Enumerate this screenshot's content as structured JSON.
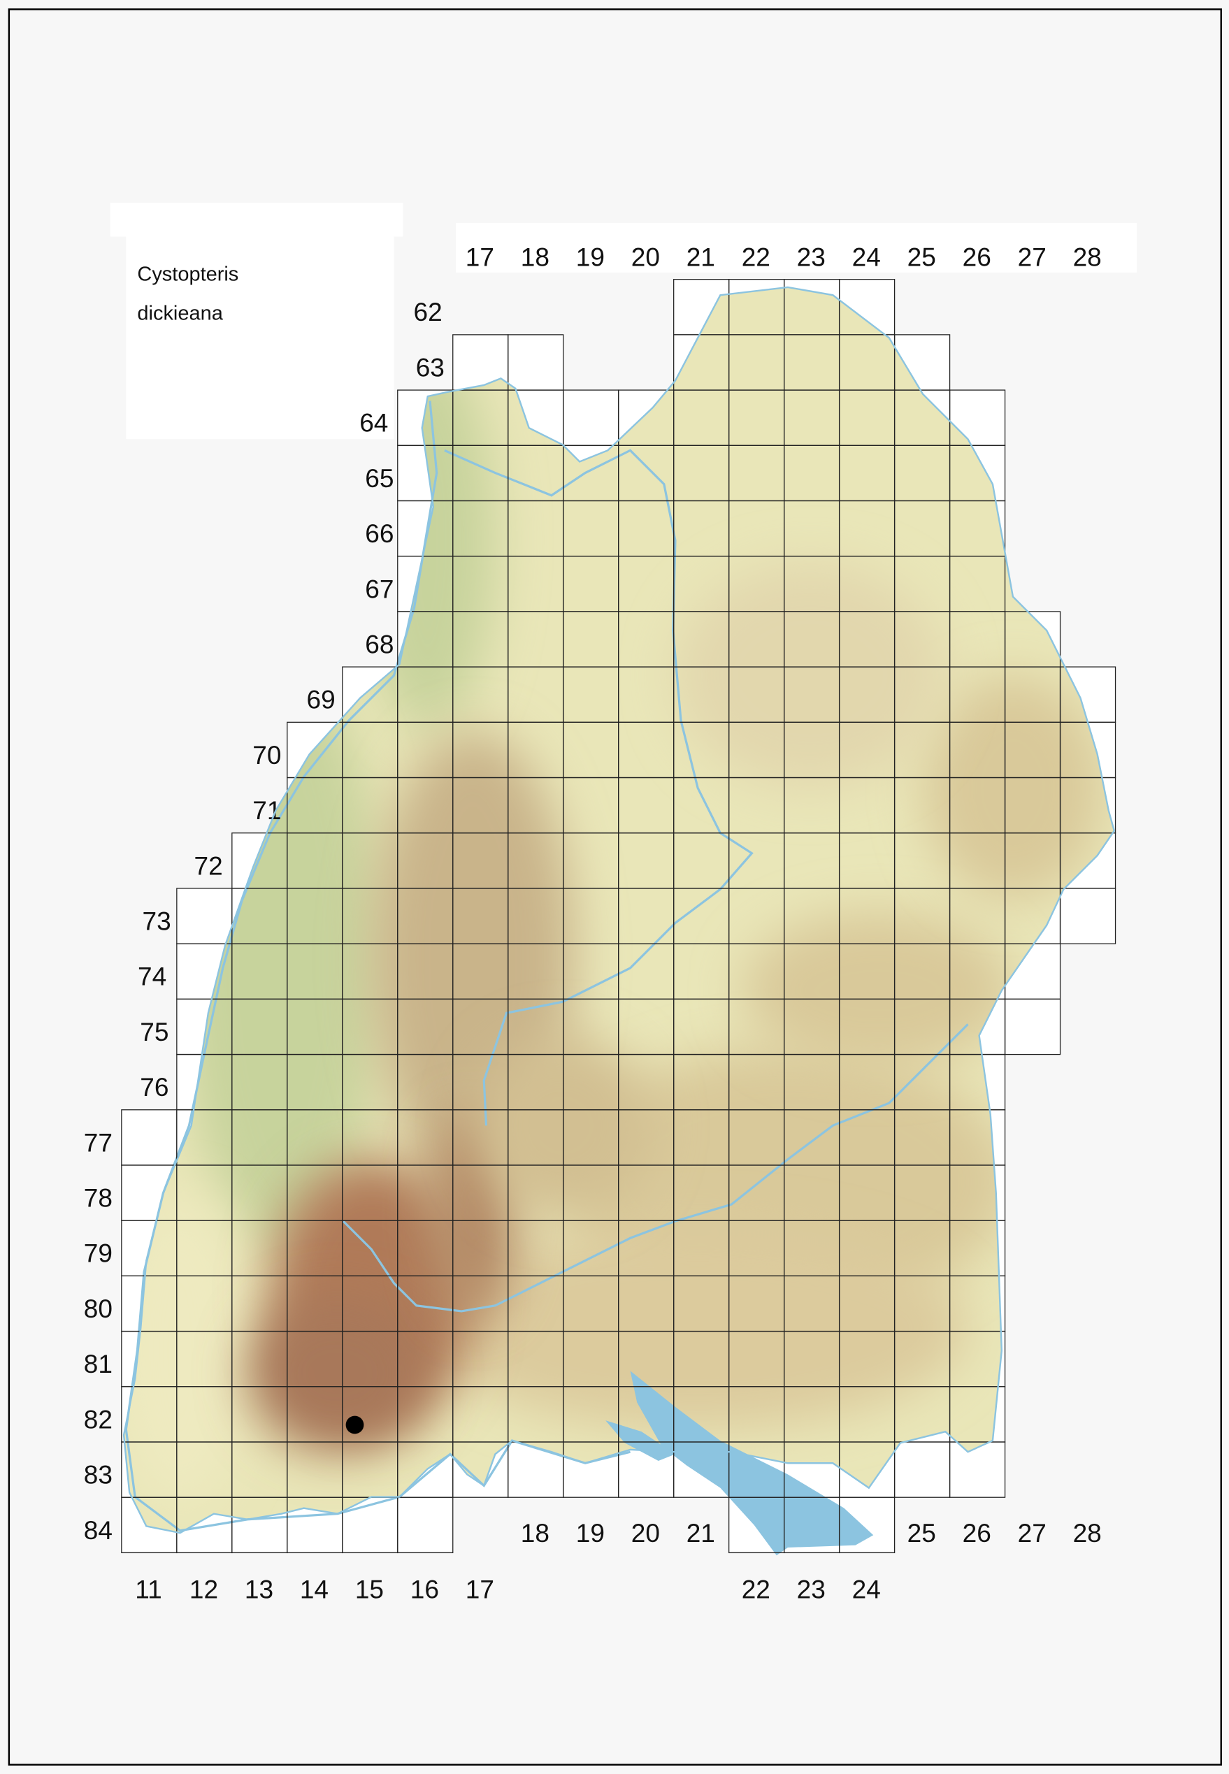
{
  "legend": {
    "title_line1": "Cystopteris",
    "title_line2": "dickieana"
  },
  "grid": {
    "top_column_labels": [
      "17",
      "18",
      "19",
      "20",
      "21",
      "22",
      "23",
      "24",
      "25",
      "26",
      "27",
      "28"
    ],
    "row_labels": [
      "62",
      "63",
      "64",
      "65",
      "66",
      "67",
      "68",
      "69",
      "70",
      "71",
      "72",
      "73",
      "74",
      "75",
      "76",
      "77",
      "78",
      "79",
      "80",
      "81",
      "82",
      "83",
      "84"
    ],
    "bottom_column_labels_left": [
      "11",
      "12",
      "13",
      "14",
      "15",
      "16",
      "17"
    ],
    "bottom_column_labels_mid": [
      "18",
      "19",
      "20",
      "21"
    ],
    "bottom_column_labels_lake": [
      "22",
      "23",
      "24"
    ],
    "bottom_column_labels_right": [
      "25",
      "26",
      "27",
      "28"
    ]
  },
  "occurrences": [
    {
      "row": 82,
      "col": 15
    }
  ],
  "colors": {
    "background": "#f7f7f7",
    "grid_line": "#222222",
    "water": "#8cc4e0",
    "lowland": "#e9e6b8",
    "rhine_plain": "#c7d39c",
    "upland": "#d9c99a",
    "mountains": "#b07a58",
    "marker": "#000000"
  }
}
